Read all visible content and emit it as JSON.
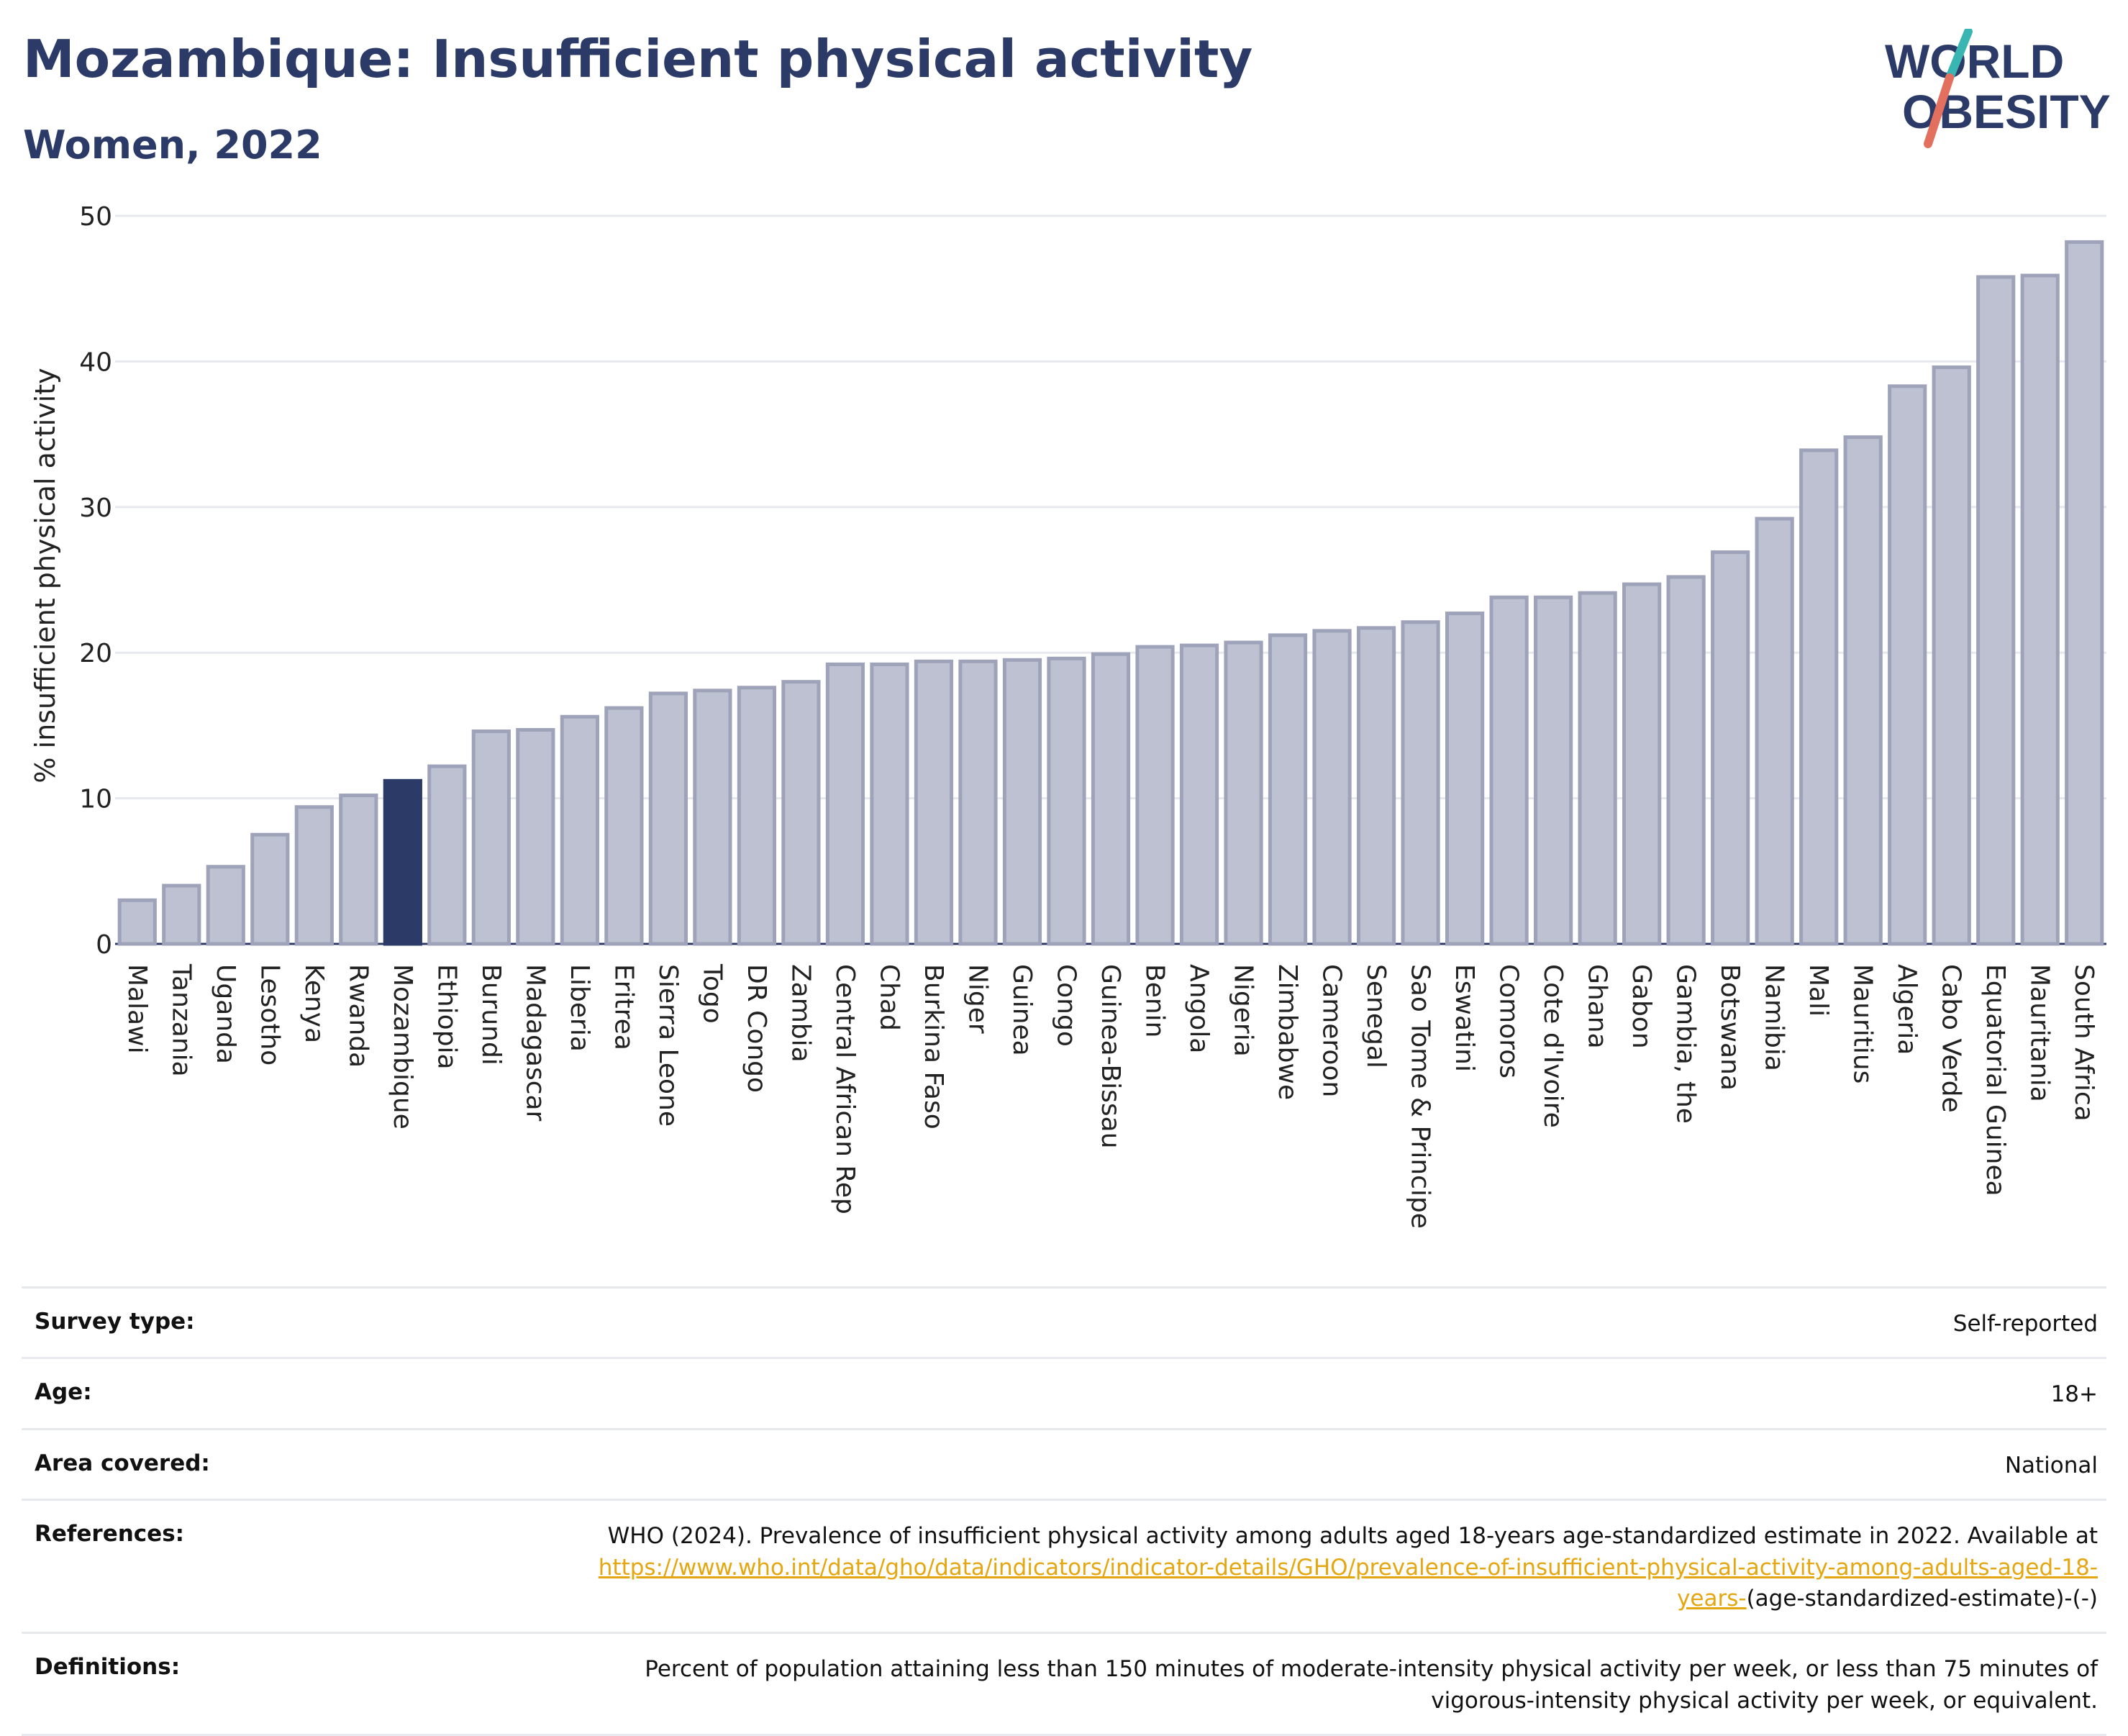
{
  "header": {
    "title": "Mozambique: Insufficient physical activity",
    "subtitle": "Women, 2022"
  },
  "logo": {
    "line1": "WORLD",
    "line2": "OBESITY"
  },
  "colors": {
    "title": "#2b3a67",
    "bar": "#bdc1d1",
    "bar_border": "#9ea3ba",
    "highlight": "#2b3a67",
    "grid": "#e6e8ee",
    "link": "#e5a711",
    "logo_teal": "#39b5b2",
    "logo_coral": "#e36f5e"
  },
  "chart_data": {
    "type": "bar",
    "title": "",
    "xlabel": "",
    "ylabel": "% insufficient physical activity",
    "ylim": [
      0,
      50
    ],
    "yticks": [
      0,
      10,
      20,
      30,
      40,
      50
    ],
    "grid": true,
    "highlight": "Mozambique",
    "categories": [
      "Malawi",
      "Tanzania",
      "Uganda",
      "Lesotho",
      "Kenya",
      "Rwanda",
      "Mozambique",
      "Ethiopia",
      "Burundi",
      "Madagascar",
      "Liberia",
      "Eritrea",
      "Sierra Leone",
      "Togo",
      "DR Congo",
      "Zambia",
      "Central African Rep",
      "Chad",
      "Burkina Faso",
      "Niger",
      "Guinea",
      "Congo",
      "Guinea-Bissau",
      "Benin",
      "Angola",
      "Nigeria",
      "Zimbabwe",
      "Cameroon",
      "Senegal",
      "Sao Tome & Principe",
      "Eswatini",
      "Comoros",
      "Cote d'Ivoire",
      "Ghana",
      "Gabon",
      "Gambia, the",
      "Botswana",
      "Namibia",
      "Mali",
      "Mauritius",
      "Algeria",
      "Cabo Verde",
      "Equatorial Guinea",
      "Mauritania",
      "South Africa"
    ],
    "values": [
      3.0,
      4.0,
      5.3,
      7.5,
      9.4,
      10.2,
      11.2,
      12.2,
      14.6,
      14.7,
      15.6,
      16.2,
      17.2,
      17.4,
      17.6,
      18.0,
      19.2,
      19.2,
      19.4,
      19.4,
      19.5,
      19.6,
      19.9,
      20.4,
      20.5,
      20.7,
      21.2,
      21.5,
      21.7,
      22.1,
      22.7,
      23.8,
      23.8,
      24.1,
      24.7,
      25.2,
      26.9,
      29.2,
      33.9,
      34.8,
      38.3,
      39.6,
      45.8,
      45.9,
      48.2
    ]
  },
  "meta": {
    "survey_type": {
      "label": "Survey type:",
      "value": "Self-reported"
    },
    "age": {
      "label": "Age:",
      "value": "18+"
    },
    "area": {
      "label": "Area covered:",
      "value": "National"
    },
    "references": {
      "label": "References:",
      "text_before": "WHO (2024). Prevalence of insufficient physical activity among adults aged 18-years age-standardized estimate in 2022. Available at",
      "link": "https://www.who.int/data/gho/data/indicators/indicator-details/GHO/prevalence-of-insufficient-physical-activity-among-adults-aged-18-years-",
      "text_after": "(age-standardized-estimate)-(-)"
    },
    "definitions": {
      "label": "Definitions:",
      "value": "Percent of population attaining less than 150 minutes of moderate-intensity physical activity per week, or less than 75 minutes of vigorous-intensity physical activity per week, or equivalent."
    }
  }
}
